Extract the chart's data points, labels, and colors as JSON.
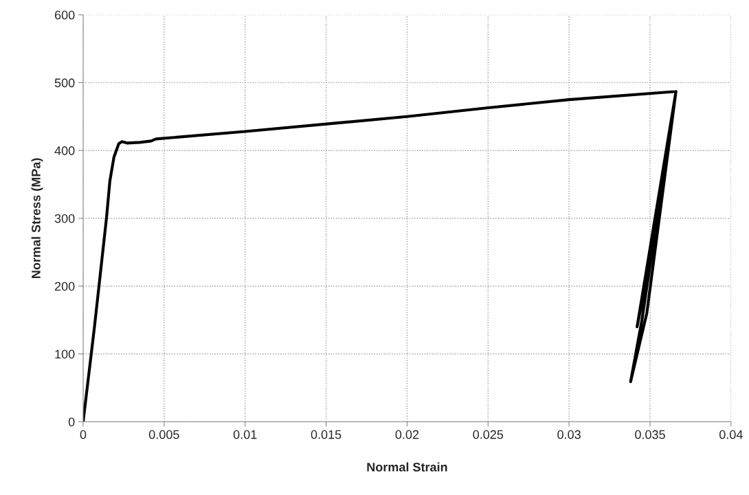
{
  "chart_data": {
    "type": "line",
    "xlabel": "Normal Strain",
    "ylabel": "Normal Stress (MPa)",
    "xlim": [
      0,
      0.04
    ],
    "ylim": [
      0,
      600
    ],
    "xticks": [
      0,
      0.005,
      0.01,
      0.015,
      0.02,
      0.025,
      0.03,
      0.035,
      0.04
    ],
    "yticks": [
      0,
      100,
      200,
      300,
      400,
      500,
      600
    ],
    "grid": true,
    "marker": "none",
    "line_style": "solid",
    "series": [
      {
        "color": "#000000",
        "x": [
          0,
          0.0007,
          0.00144,
          0.00165,
          0.0019,
          0.0022,
          0.0024,
          0.0027,
          0.0035,
          0.0042,
          0.0045,
          0.01,
          0.015,
          0.02,
          0.025,
          0.03,
          0.0366,
          0.0345,
          0.0338,
          0.0348,
          0.0366,
          0.0347,
          0.0342,
          0.0366
        ],
        "values": [
          0,
          140,
          300,
          355,
          390,
          410,
          413,
          411,
          412,
          414,
          417,
          428,
          439,
          450,
          463,
          475,
          487,
          150,
          59,
          160,
          487,
          200,
          140,
          487
        ]
      }
    ]
  }
}
